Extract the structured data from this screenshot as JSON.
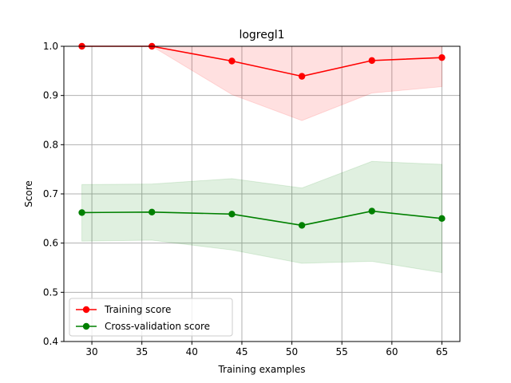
{
  "chart_data": {
    "type": "line",
    "title": "logregl1",
    "xlabel": "Training examples",
    "ylabel": "Score",
    "xlim": [
      27.2,
      66.8
    ],
    "ylim": [
      0.4,
      1.0
    ],
    "xticks": [
      30,
      35,
      40,
      45,
      50,
      55,
      60,
      65
    ],
    "yticks": [
      0.4,
      0.5,
      0.6,
      0.7,
      0.8,
      0.9,
      1.0
    ],
    "grid": true,
    "legend_position": "lower-left",
    "x": [
      29,
      36,
      44,
      51,
      58,
      65
    ],
    "series": [
      {
        "name": "Training score",
        "color": "#ff0000",
        "values": [
          1.0,
          1.0,
          0.97,
          0.939,
          0.971,
          0.977
        ],
        "band_lower": [
          1.0,
          1.0,
          0.902,
          0.849,
          0.905,
          0.918
        ],
        "band_upper": [
          1.0,
          1.0,
          1.0,
          1.0,
          1.0,
          1.0
        ],
        "band_color": "#ff0000"
      },
      {
        "name": "Cross-validation score",
        "color": "#008000",
        "values": [
          0.662,
          0.663,
          0.659,
          0.636,
          0.665,
          0.65
        ],
        "band_lower": [
          0.604,
          0.606,
          0.586,
          0.559,
          0.563,
          0.54
        ],
        "band_upper": [
          0.719,
          0.72,
          0.731,
          0.712,
          0.766,
          0.76
        ],
        "band_color": "#008000"
      }
    ]
  }
}
